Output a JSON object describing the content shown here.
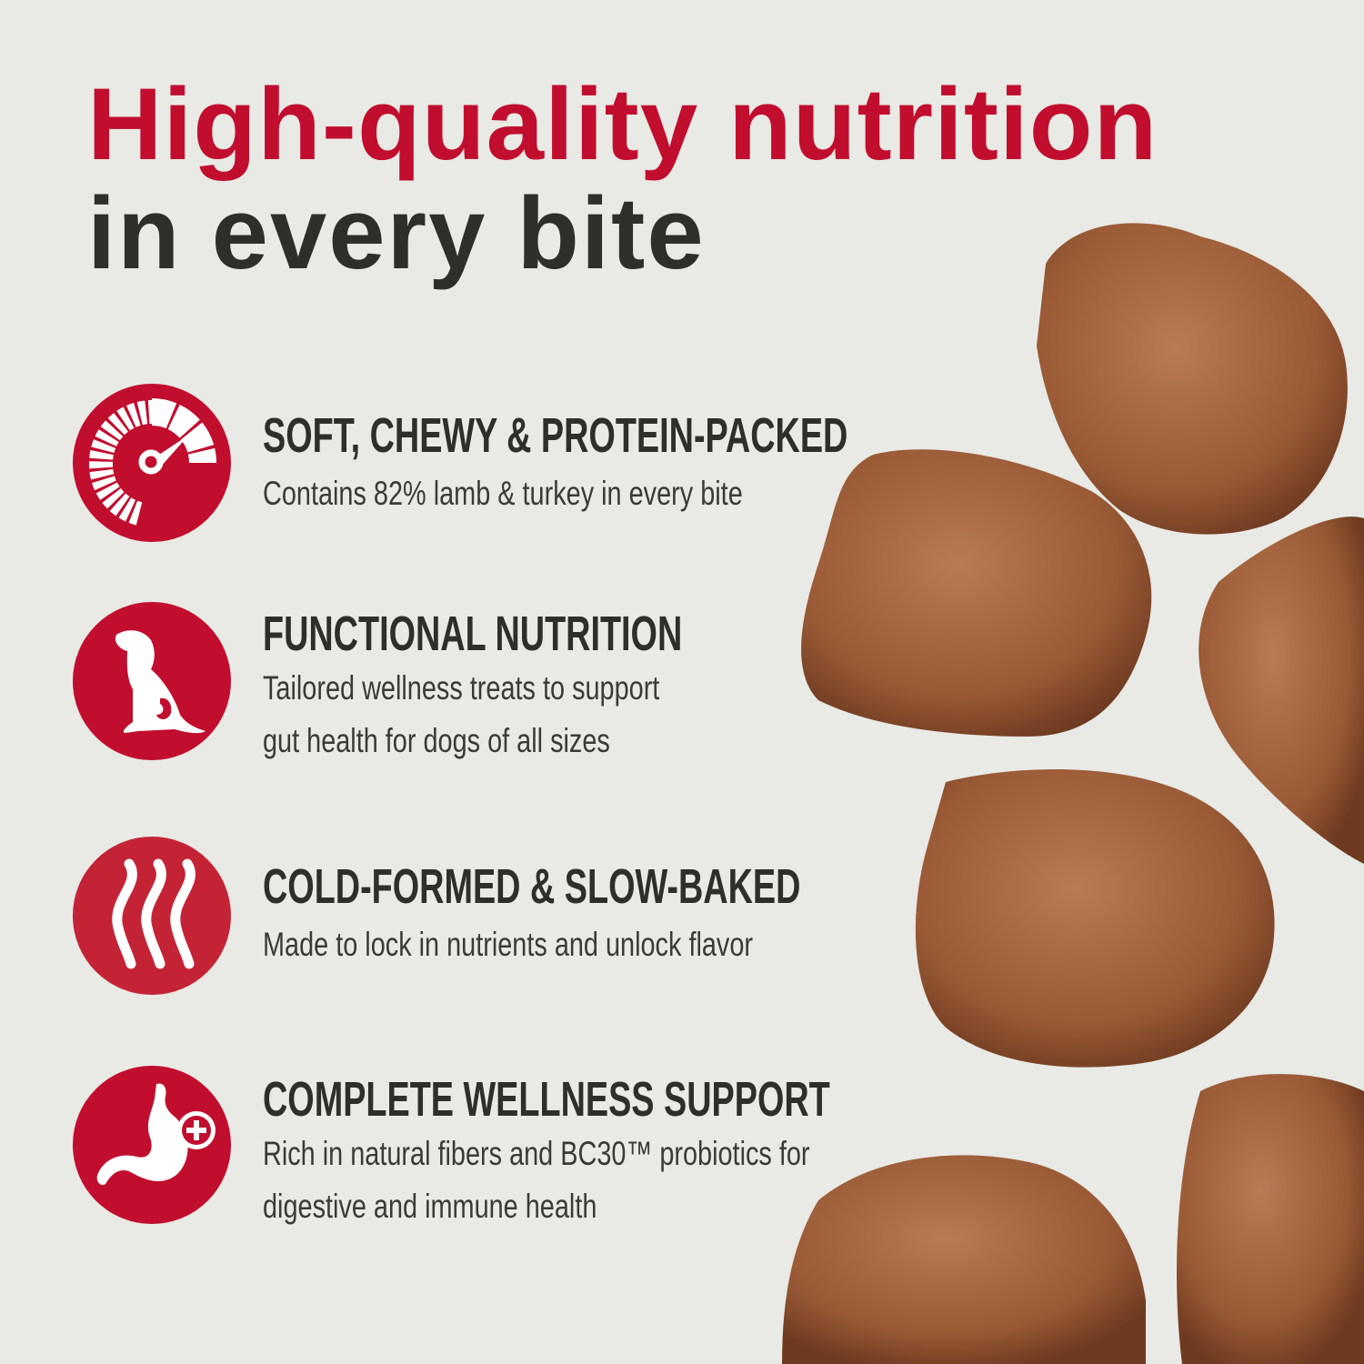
{
  "headline": {
    "line1": "High-quality nutrition",
    "line2": "in every bite"
  },
  "colors": {
    "accent": "#c10e2e",
    "text": "#2e2f2b",
    "background": "#e9e9e5"
  },
  "features": [
    {
      "icon": "speedometer-icon",
      "title": "SOFT, CHEWY & PROTEIN-PACKED",
      "lines": [
        "Contains 82% lamb & turkey in every bite"
      ]
    },
    {
      "icon": "dog-gut-icon",
      "title": "FUNCTIONAL NUTRITION",
      "lines": [
        "Tailored wellness treats to support",
        "gut health for dogs of all sizes"
      ]
    },
    {
      "icon": "heat-waves-icon",
      "title": "COLD-FORMED & SLOW-BAKED",
      "lines": [
        "Made to lock in nutrients and unlock flavor"
      ]
    },
    {
      "icon": "stomach-plus-icon",
      "title": "COMPLETE WELLNESS SUPPORT",
      "lines": [
        "Rich in natural fibers and BC30™ probiotics for",
        "digestive and immune health"
      ]
    }
  ]
}
